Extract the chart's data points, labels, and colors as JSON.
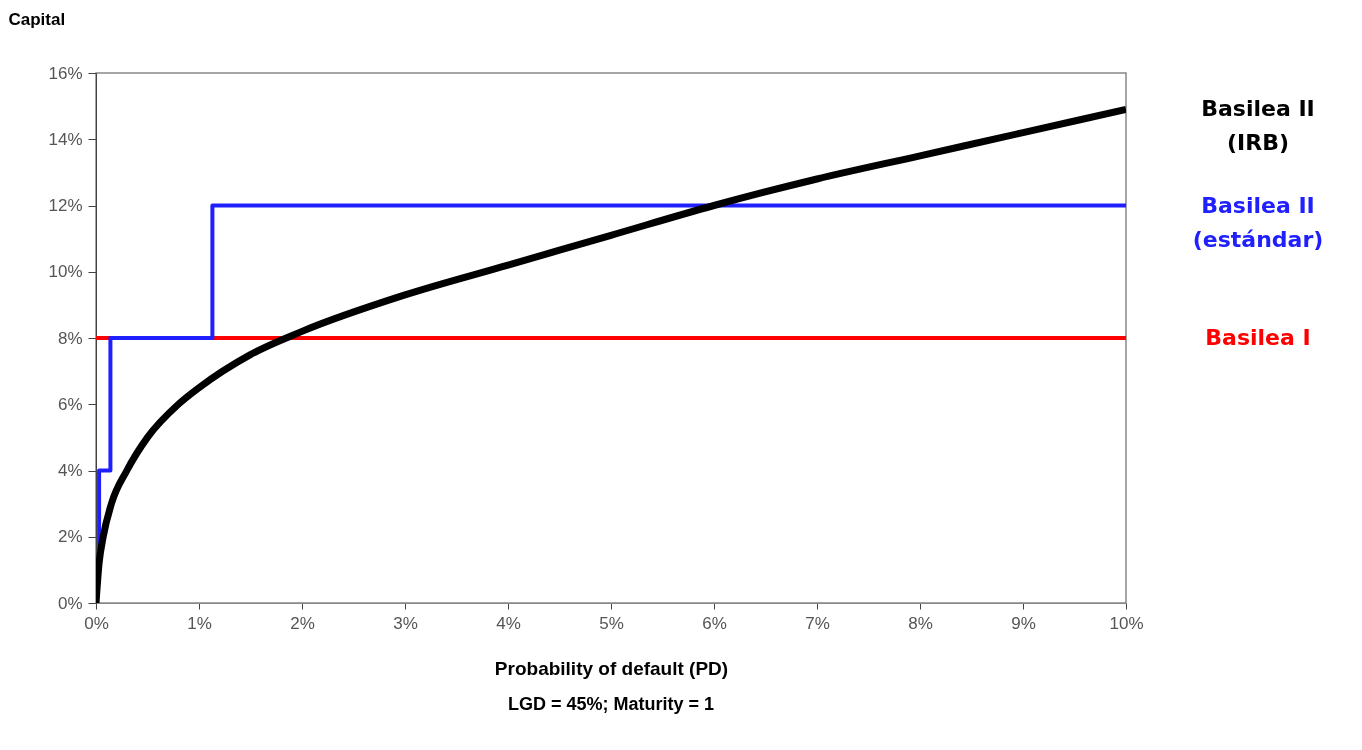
{
  "chart_data": {
    "type": "line",
    "ylabel": "Capital",
    "xlabel": "Probability of default  (PD)",
    "annotations": [
      "LGD = 45%; Maturity = 1"
    ],
    "xlim": [
      0,
      10
    ],
    "ylim": [
      0,
      16
    ],
    "xticks": [
      {
        "value": 0,
        "label": "0%"
      },
      {
        "value": 1,
        "label": "1%"
      },
      {
        "value": 2,
        "label": "2%"
      },
      {
        "value": 3,
        "label": "3%"
      },
      {
        "value": 4,
        "label": "4%"
      },
      {
        "value": 5,
        "label": "5%"
      },
      {
        "value": 6,
        "label": "6%"
      },
      {
        "value": 7,
        "label": "7%"
      },
      {
        "value": 8,
        "label": "8%"
      },
      {
        "value": 9,
        "label": "9%"
      },
      {
        "value": 10,
        "label": "10%"
      }
    ],
    "yticks": [
      {
        "value": 0,
        "label": "0%"
      },
      {
        "value": 2,
        "label": "2%"
      },
      {
        "value": 4,
        "label": "4%"
      },
      {
        "value": 6,
        "label": "6%"
      },
      {
        "value": 8,
        "label": "8%"
      },
      {
        "value": 10,
        "label": "10%"
      },
      {
        "value": 12,
        "label": "12%"
      },
      {
        "value": 14,
        "label": "14%"
      },
      {
        "value": 16,
        "label": "16%"
      }
    ],
    "grid": false,
    "marker": "none",
    "line_style": "solid",
    "series": [
      {
        "name": "Basilea II (IRB)",
        "color": "#000000",
        "x": [
          0,
          0.03,
          0.07,
          0.15,
          0.3,
          0.5,
          0.8,
          1,
          1.5,
          2,
          3,
          4,
          5,
          6,
          7,
          8,
          9,
          10
        ],
        "values": [
          0,
          1.2,
          2,
          3,
          4,
          5,
          6,
          6.5,
          7.5,
          8.2,
          9.3,
          10.2,
          11.1,
          12,
          12.8,
          13.5,
          14.2,
          14.9
        ]
      },
      {
        "name": "Basilea II (estándar)",
        "color": "#2020ff",
        "type": "step",
        "x": [
          0.03,
          0.03,
          0.14,
          1.13,
          10
        ],
        "values": [
          1.6,
          4,
          8,
          12,
          12
        ]
      },
      {
        "name": "Basilea I",
        "color": "#ff0000",
        "x": [
          0,
          10
        ],
        "values": [
          8,
          8
        ]
      }
    ]
  }
}
